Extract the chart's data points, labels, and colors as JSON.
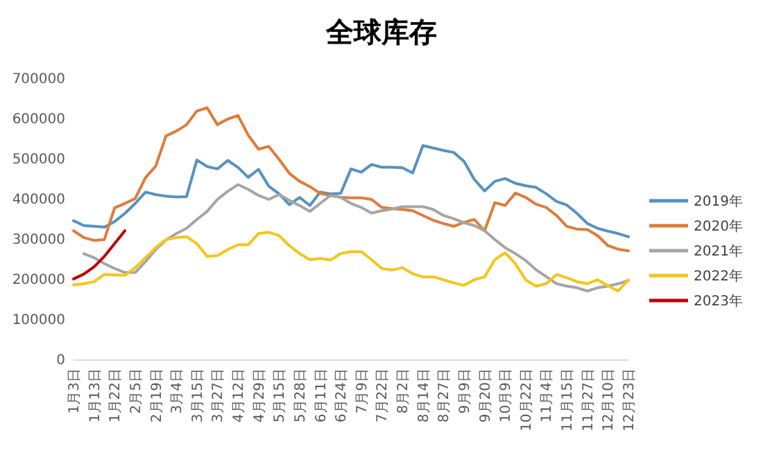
{
  "chart_data": {
    "type": "line",
    "title": "全球库存",
    "categories": [
      "1月3日",
      null,
      "1月13日",
      null,
      "1月22日",
      null,
      "2月5日",
      null,
      "2月19日",
      null,
      "3月4日",
      null,
      "3月15日",
      null,
      "3月27日",
      null,
      "4月12日",
      null,
      "4月29日",
      null,
      "5月15日",
      null,
      "5月28日",
      null,
      "6月11日",
      null,
      "6月24日",
      null,
      "7月9日",
      null,
      "7月22日",
      null,
      "8月2日",
      null,
      "8月14日",
      null,
      "8月27日",
      null,
      "9月9日",
      null,
      "9月20日",
      null,
      "10月9日",
      null,
      "10月22日",
      null,
      "11月4日",
      null,
      "11月15日",
      null,
      "11月27日",
      null,
      "12月10日",
      null,
      "12月23日"
    ],
    "series": [
      {
        "name": "2019年",
        "color": "#5592c0",
        "values": [
          347000,
          335000,
          333000,
          331000,
          345000,
          365000,
          390000,
          418000,
          412000,
          408000,
          406000,
          407000,
          498000,
          482000,
          476000,
          497000,
          480000,
          455000,
          475000,
          433000,
          414000,
          387000,
          405000,
          385000,
          418000,
          414000,
          415000,
          476000,
          468000,
          487000,
          480000,
          480000,
          479000,
          466000,
          534000,
          528000,
          522000,
          517000,
          495000,
          450000,
          421000,
          445000,
          452000,
          440000,
          434000,
          430000,
          414000,
          395000,
          386000,
          365000,
          340000,
          328000,
          321000,
          315000,
          307000
        ]
      },
      {
        "name": "2020年",
        "color": "#e07b39",
        "values": [
          322000,
          305000,
          298000,
          300000,
          379000,
          390000,
          402000,
          454000,
          483000,
          558000,
          570000,
          586000,
          620000,
          628000,
          586000,
          600000,
          609000,
          560000,
          525000,
          532000,
          500000,
          465000,
          445000,
          432000,
          415000,
          410000,
          405000,
          404000,
          404000,
          400000,
          380000,
          377000,
          375000,
          372000,
          360000,
          348000,
          340000,
          333000,
          343000,
          350000,
          322000,
          392000,
          385000,
          416000,
          405000,
          388000,
          380000,
          360000,
          333000,
          326000,
          325000,
          310000,
          285000,
          276000,
          272000
        ]
      },
      {
        "name": "2021年",
        "color": "#a5a5a5",
        "values": [
          null,
          265000,
          255000,
          240000,
          228000,
          218000,
          218000,
          245000,
          275000,
          299000,
          315000,
          328000,
          350000,
          370000,
          400000,
          420000,
          437000,
          425000,
          410000,
          400000,
          412000,
          398000,
          385000,
          370000,
          390000,
          410000,
          405000,
          390000,
          380000,
          366000,
          372000,
          376000,
          382000,
          382000,
          382000,
          375000,
          360000,
          352000,
          342000,
          335000,
          322000,
          300000,
          280000,
          265000,
          248000,
          225000,
          208000,
          190000,
          184000,
          180000,
          172000,
          180000,
          184000,
          190000,
          198000
        ]
      },
      {
        "name": "2022年",
        "color": "#f5c518",
        "values": [
          187000,
          190000,
          195000,
          213000,
          212000,
          211000,
          230000,
          255000,
          280000,
          300000,
          305000,
          307000,
          290000,
          258000,
          260000,
          275000,
          287000,
          287000,
          315000,
          318000,
          310000,
          285000,
          265000,
          250000,
          253000,
          249000,
          265000,
          270000,
          270000,
          250000,
          228000,
          224000,
          230000,
          215000,
          207000,
          207000,
          200000,
          192000,
          186000,
          200000,
          207000,
          250000,
          267000,
          240000,
          200000,
          184000,
          190000,
          213000,
          205000,
          195000,
          190000,
          200000,
          185000,
          172000,
          200000
        ]
      },
      {
        "name": "2023年",
        "color": "#c00000",
        "values": [
          202000,
          214000,
          232000,
          258000,
          290000,
          322000,
          null,
          null,
          null,
          null,
          null,
          null,
          null,
          null,
          null,
          null,
          null,
          null,
          null,
          null,
          null,
          null,
          null,
          null,
          null,
          null,
          null,
          null,
          null,
          null,
          null,
          null,
          null,
          null,
          null,
          null,
          null,
          null,
          null,
          null,
          null,
          null,
          null,
          null,
          null,
          null,
          null,
          null,
          null,
          null,
          null,
          null,
          null,
          null,
          null
        ]
      }
    ],
    "ylim": [
      0,
      700000
    ],
    "yticks": [
      0,
      100000,
      200000,
      300000,
      400000,
      500000,
      600000,
      700000
    ],
    "legend": "right"
  }
}
